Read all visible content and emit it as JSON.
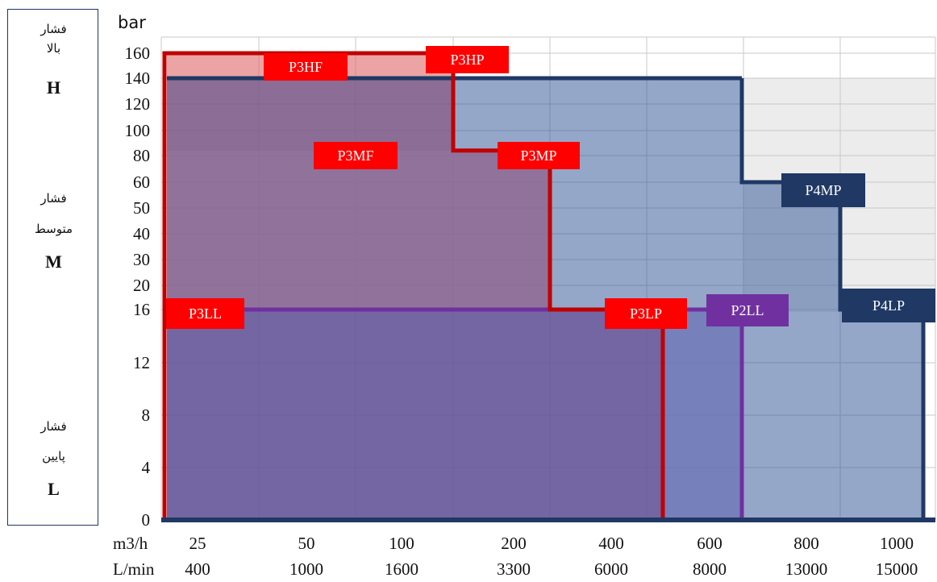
{
  "sidebar": {
    "high": {
      "fa_line1": "فشار",
      "fa_line2": "بالا",
      "letter": "H"
    },
    "medium": {
      "fa_line1": "فشار",
      "fa_line2": "متوسط",
      "letter": "M"
    },
    "low": {
      "fa_line1": "فشار",
      "fa_line2": "پایین",
      "letter": "L"
    }
  },
  "chart_data": {
    "type": "area",
    "ylabel": "bar",
    "y_ticks": [
      "0",
      "4",
      "8",
      "12",
      "16",
      "20",
      "30",
      "40",
      "50",
      "60",
      "80",
      "100",
      "120",
      "140",
      "160"
    ],
    "x_row_labels": [
      "m3/h",
      "L/min"
    ],
    "x_ticks_m3h": [
      "25",
      "50",
      "100",
      "200",
      "400",
      "600",
      "800",
      "1000"
    ],
    "x_ticks_lmin": [
      "400",
      "1000",
      "1600",
      "3300",
      "6000",
      "8000",
      "13000",
      "15000"
    ],
    "grid": true,
    "series": [
      {
        "name": "P3HF",
        "color": "#ff0000",
        "points": [
          [
            "25",
            160
          ],
          [
            "130",
            160
          ]
        ]
      },
      {
        "name": "P3HP",
        "color": "#ff0000",
        "points": [
          [
            "130",
            160
          ],
          [
            "130",
            84
          ],
          [
            "250",
            84
          ]
        ]
      },
      {
        "name": "P3MF",
        "color": "#ff0000",
        "points": [
          [
            "25",
            84
          ],
          [
            "250",
            84
          ]
        ]
      },
      {
        "name": "P3MP",
        "color": "#ff0000",
        "points": [
          [
            "250",
            84
          ],
          [
            "250",
            16
          ],
          [
            "510",
            16
          ],
          [
            "510",
            0
          ]
        ]
      },
      {
        "name": "P3LL",
        "color": "#ff0000",
        "points": [
          [
            "25",
            16
          ],
          [
            "510",
            16
          ]
        ]
      },
      {
        "name": "P3LP",
        "color": "#ff0000",
        "points": [
          [
            "250",
            16
          ],
          [
            "510",
            16
          ],
          [
            "510",
            0
          ]
        ]
      },
      {
        "name": "P2LL",
        "color": "#7030a0",
        "points": [
          [
            "25",
            16
          ],
          [
            "650",
            16
          ],
          [
            "650",
            0
          ]
        ]
      },
      {
        "name": "P4MP",
        "color": "#1f3864",
        "points": [
          [
            "25",
            140
          ],
          [
            "660",
            140
          ],
          [
            "660",
            60
          ],
          [
            "860",
            60
          ]
        ]
      },
      {
        "name": "P4LP",
        "color": "#1f3864",
        "points": [
          [
            "860",
            60
          ],
          [
            "860",
            16
          ],
          [
            "1020",
            16
          ],
          [
            "1020",
            0
          ]
        ]
      }
    ],
    "labels": [
      {
        "name": "P3HF",
        "text": "P3HF",
        "color": "#ff0000"
      },
      {
        "name": "P3HP",
        "text": "P3HP",
        "color": "#ff0000"
      },
      {
        "name": "P3MF",
        "text": "P3MF",
        "color": "#ff0000"
      },
      {
        "name": "P3MP",
        "text": "P3MP",
        "color": "#ff0000"
      },
      {
        "name": "P3LL",
        "text": "P3LL",
        "color": "#ff0000"
      },
      {
        "name": "P3LP",
        "text": "P3LP",
        "color": "#ff0000"
      },
      {
        "name": "P2LL",
        "text": "P2LL",
        "color": "#7030a0"
      },
      {
        "name": "P4MP",
        "text": "P4MP",
        "color": "#1f3864"
      },
      {
        "name": "P4LP",
        "text": "P4LP",
        "color": "#1f3864"
      }
    ]
  }
}
